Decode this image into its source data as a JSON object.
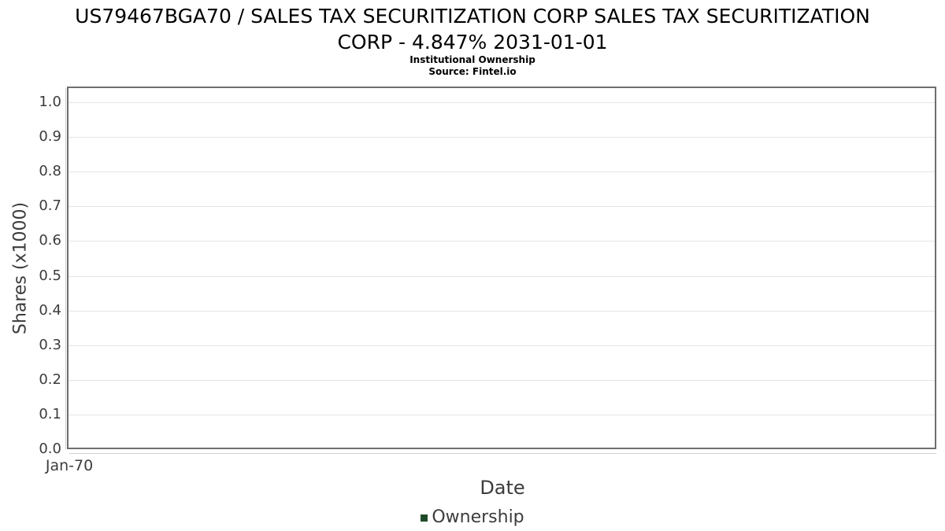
{
  "header": {
    "title_line1": "US79467BGA70 / SALES TAX SECURITIZATION CORP SALES TAX SECURITIZATION",
    "title_line2": "CORP - 4.847% 2031-01-01",
    "subtitle": "Institutional Ownership",
    "source": "Source: Fintel.io"
  },
  "chart_data": {
    "type": "line",
    "title": "US79467BGA70 / SALES TAX SECURITIZATION CORP SALES TAX SECURITIZATION CORP - 4.847% 2031-01-01",
    "subtitle": "Institutional Ownership",
    "source": "Source: Fintel.io",
    "xlabel": "Date",
    "ylabel": "Shares (x1000)",
    "x_tick_labels": [
      "Jan-70"
    ],
    "y_tick_labels": [
      "0.0",
      "0.1",
      "0.2",
      "0.3",
      "0.4",
      "0.5",
      "0.6",
      "0.7",
      "0.8",
      "0.9",
      "1.0"
    ],
    "ylim": [
      0.0,
      1.045
    ],
    "xlim_labels": [
      "Jan-70"
    ],
    "grid": "horizontal",
    "legend_position": "bottom-center",
    "series": [
      {
        "name": "Ownership",
        "color": "#1e4b2a",
        "x": [],
        "values": []
      }
    ],
    "colors": {
      "plot_border": "#6e6e6e",
      "gridline": "#e5e5e5",
      "axis_line": "#cfcfcf",
      "tick_text": "#3c3c3c",
      "title_text": "#000000"
    }
  },
  "legend": {
    "items": [
      {
        "label": "Ownership",
        "color": "#1e4b2a"
      }
    ]
  }
}
